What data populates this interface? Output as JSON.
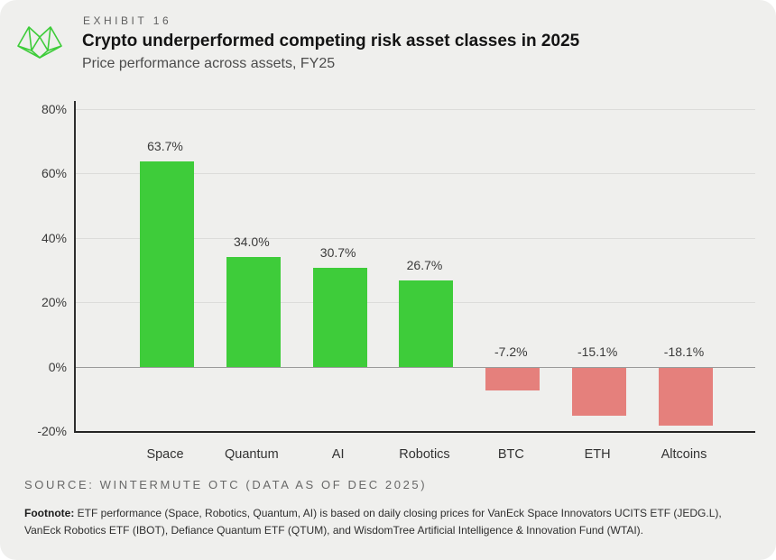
{
  "header": {
    "exhibit": "EXHIBIT 16",
    "title": "Crypto underperformed competing risk asset classes in 2025",
    "subtitle": "Price performance across assets, FY25"
  },
  "logo": {
    "name": "wintermute-logo",
    "color": "#3ecc3a"
  },
  "chart_data": {
    "type": "bar",
    "categories": [
      "Space",
      "Quantum",
      "AI",
      "Robotics",
      "BTC",
      "ETH",
      "Altcoins"
    ],
    "values": [
      63.7,
      34.0,
      30.7,
      26.7,
      -7.2,
      -15.1,
      -18.1
    ],
    "value_labels": [
      "63.7%",
      "34.0%",
      "30.7%",
      "26.7%",
      "-7.2%",
      "-15.1%",
      "-18.1%"
    ],
    "title": "Crypto underperformed competing risk asset classes in 2025",
    "xlabel": "",
    "ylabel": "",
    "ylim": [
      -20,
      80
    ],
    "yticks": [
      {
        "value": 80,
        "label": "80%"
      },
      {
        "value": 60,
        "label": "60%"
      },
      {
        "value": 40,
        "label": "40%"
      },
      {
        "value": 20,
        "label": "20%"
      },
      {
        "value": 0,
        "label": "0%"
      },
      {
        "value": -20,
        "label": "-20%"
      }
    ],
    "grid": true,
    "legend": false,
    "positive_color": "#3ecc3a",
    "negative_color": "#e5807c"
  },
  "footer": {
    "source": "SOURCE: WINTERMUTE OTC (DATA AS OF DEC 2025)",
    "footnote_label": "Footnote:",
    "footnote_text": " ETF performance (Space, Robotics, Quantum, AI) is based on daily closing prices for VanEck Space Innovators UCITS ETF (JEDG.L), VanEck Robotics ETF (IBOT), Defiance Quantum ETF (QTUM), and WisdomTree Artificial Intelligence & Innovation Fund (WTAI)."
  }
}
